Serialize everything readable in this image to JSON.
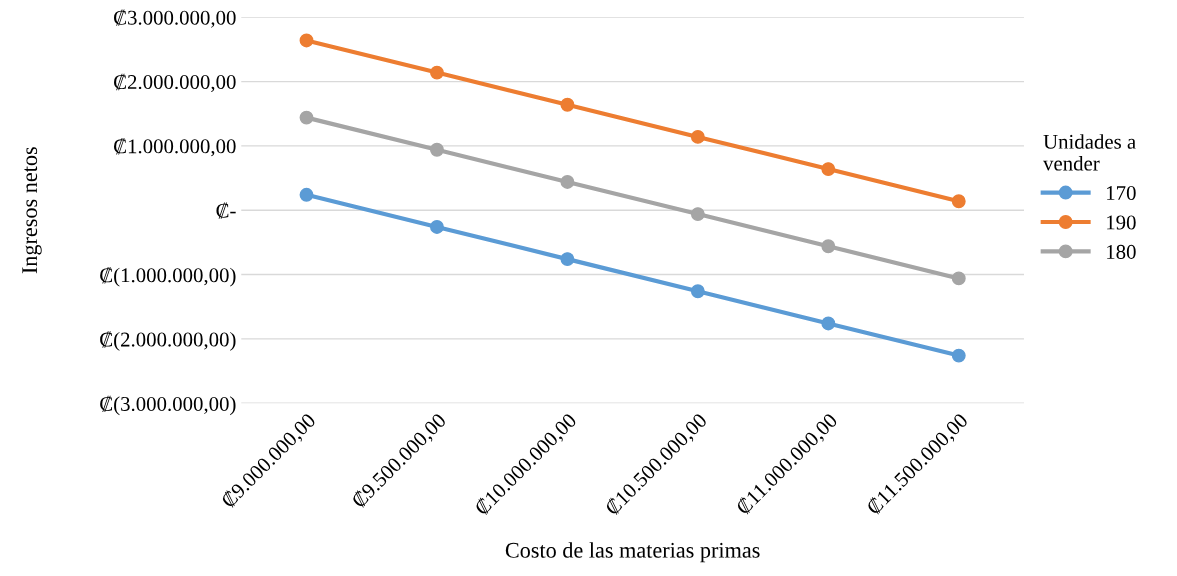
{
  "chart_data": {
    "type": "line",
    "xlabel": "Costo de las materias primas",
    "ylabel": "Ingresos netos",
    "legend_title": "Unidades a\nvender",
    "categories": [
      "₡9.000.000,00",
      "₡9.500.000,00",
      "₡10.000.000,00",
      "₡10.500.000,00",
      "₡11.000.000,00",
      "₡11.500.000,00"
    ],
    "series": [
      {
        "name": "170",
        "color": "#5b9bd5",
        "values": [
          240000,
          -260000,
          -760000,
          -1260000,
          -1760000,
          -2260000
        ]
      },
      {
        "name": "190",
        "color": "#ed7d31",
        "values": [
          2640000,
          2140000,
          1640000,
          1140000,
          640000,
          140000
        ]
      },
      {
        "name": "180",
        "color": "#a5a5a5",
        "values": [
          1440000,
          940000,
          440000,
          -60000,
          -560000,
          -1060000
        ]
      }
    ],
    "ylim": [
      -3000000,
      3000000
    ],
    "yticks": [
      {
        "value": -3000000,
        "label": "₡(3.000.000,00)"
      },
      {
        "value": -2000000,
        "label": "₡(2.000.000,00)"
      },
      {
        "value": -1000000,
        "label": "₡(1.000.000,00)"
      },
      {
        "value": 0,
        "label": "₡-"
      },
      {
        "value": 1000000,
        "label": "₡1.000.000,00"
      },
      {
        "value": 2000000,
        "label": "₡2.000.000,00"
      },
      {
        "value": 3000000,
        "label": "₡3.000.000,00"
      }
    ],
    "grid": "y",
    "legend": "right",
    "marker": "circle",
    "line_style": "solid"
  }
}
